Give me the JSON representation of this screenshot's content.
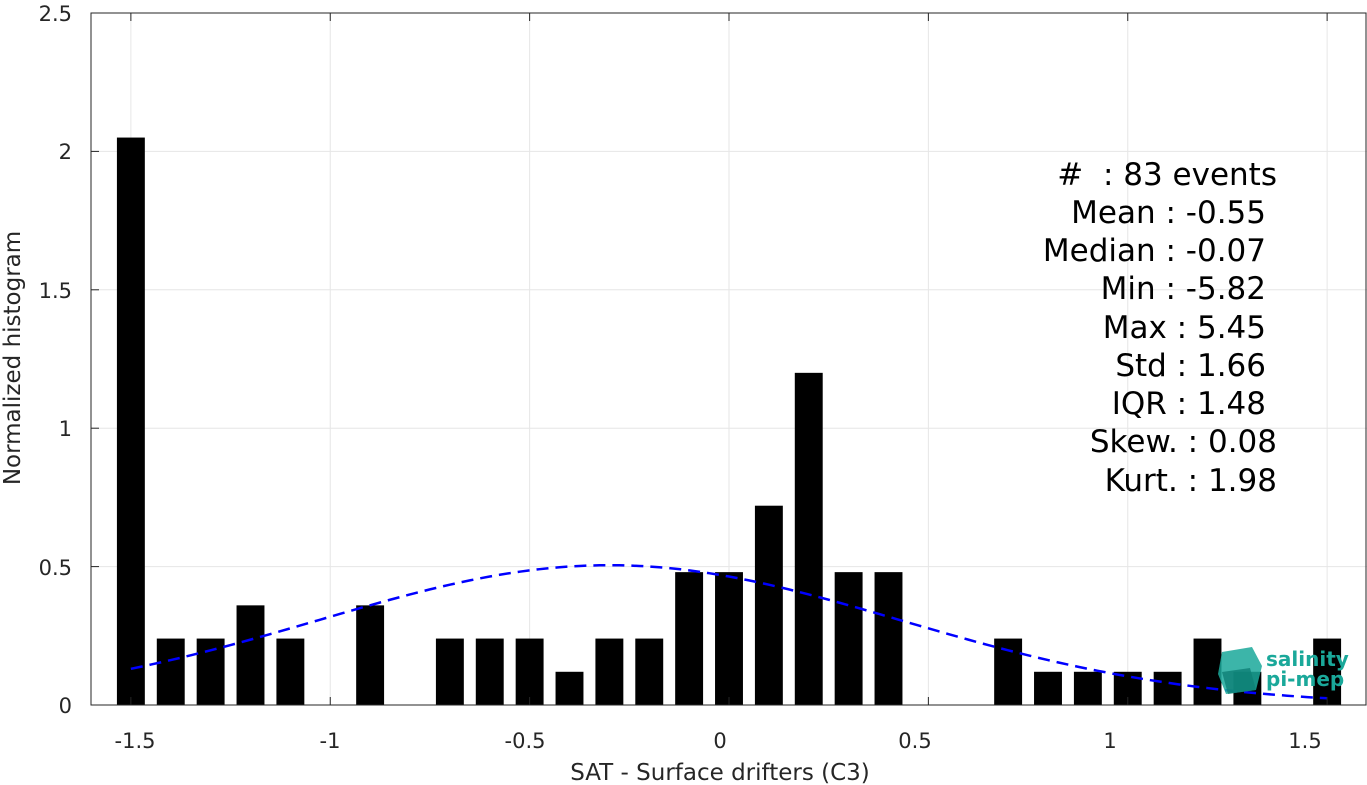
{
  "chart_data": {
    "type": "bar",
    "xlabel": "SAT - Surface drifters (C3)",
    "ylabel": "Normalized histogram",
    "xlim": [
      -1.6,
      1.6
    ],
    "ylim": [
      0,
      2.5
    ],
    "xticks": [
      -1.5,
      -1,
      -0.5,
      0,
      0.5,
      1,
      1.5
    ],
    "xtick_labels": [
      "-1.5",
      "-1",
      "-0.5",
      "0",
      "0.5",
      "1",
      "1.5"
    ],
    "yticks": [
      0,
      0.5,
      1,
      1.5,
      2,
      2.5
    ],
    "ytick_labels": [
      "0",
      "0.5",
      "1",
      "1.5",
      "2",
      "2.5"
    ],
    "grid": true,
    "bar_width": 0.07,
    "bar_color": "#000000",
    "x": [
      -1.5,
      -1.4,
      -1.3,
      -1.2,
      -1.1,
      -1.0,
      -0.9,
      -0.8,
      -0.7,
      -0.6,
      -0.5,
      -0.4,
      -0.3,
      -0.2,
      -0.1,
      0.0,
      0.1,
      0.2,
      0.3,
      0.4,
      0.5,
      0.6,
      0.7,
      0.8,
      0.9,
      1.0,
      1.1,
      1.2,
      1.3,
      1.5
    ],
    "values": [
      2.05,
      0.24,
      0.24,
      0.36,
      0.24,
      0,
      0.36,
      0,
      0.24,
      0.24,
      0.24,
      0.12,
      0.24,
      0.24,
      0.48,
      0.48,
      0.72,
      1.2,
      0.48,
      0.48,
      0,
      0,
      0.24,
      0.12,
      0.12,
      0.12,
      0.12,
      0.24,
      0.12,
      0.24
    ],
    "fit_curve": {
      "style": "dashed",
      "color": "#0000ff",
      "mean": -0.3,
      "peak": 0.505,
      "sigma": 0.73,
      "x_range": [
        -1.5,
        1.5
      ]
    }
  },
  "stats": [
    "#  : 83 events",
    "Mean : -0.55",
    "Median : -0.07",
    "Min : -5.82",
    "Max : 5.45",
    "Std : 1.66",
    "IQR : 1.48",
    "Skew. : 0.08",
    "Kurt. : 1.98"
  ],
  "logo": {
    "line1": "salinity",
    "line2": "pi-mep",
    "color": "#1aa89a"
  }
}
